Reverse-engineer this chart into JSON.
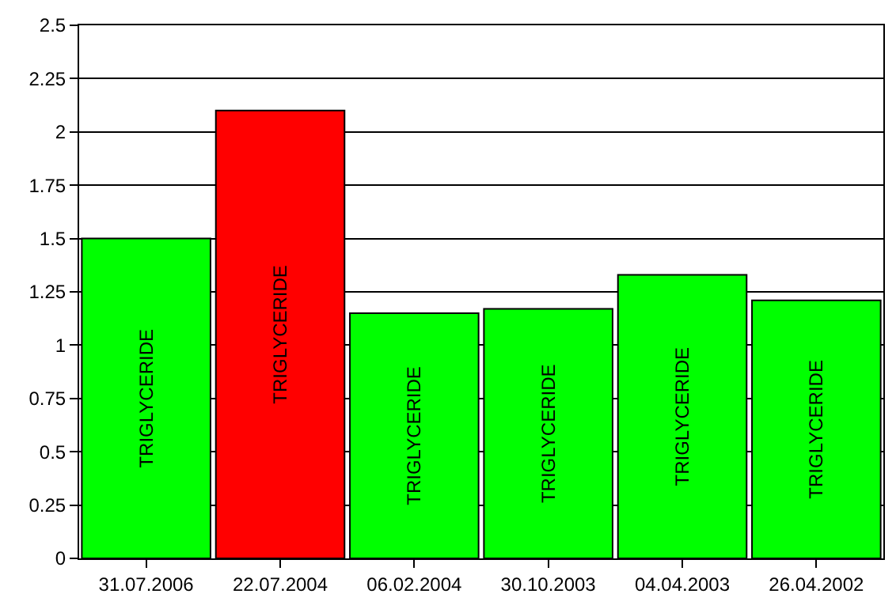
{
  "chart_data": {
    "type": "bar",
    "categories": [
      "31.07.2006",
      "22.07.2004",
      "06.02.2004",
      "30.10.2003",
      "04.04.2003",
      "26.04.2002"
    ],
    "series": [
      {
        "name": "TRIGLYCERIDE",
        "colors": [
          "#00ff00",
          "#ff0000",
          "#00ff00",
          "#00ff00",
          "#00ff00",
          "#00ff00"
        ],
        "values": [
          1.5,
          2.1,
          1.15,
          1.17,
          1.33,
          1.21
        ]
      }
    ],
    "ylim": [
      0,
      2.5
    ],
    "yticks": [
      0,
      0.25,
      0.5,
      0.75,
      1,
      1.25,
      1.5,
      1.75,
      2,
      2.25,
      2.5
    ],
    "grid": "y",
    "legend": false
  }
}
